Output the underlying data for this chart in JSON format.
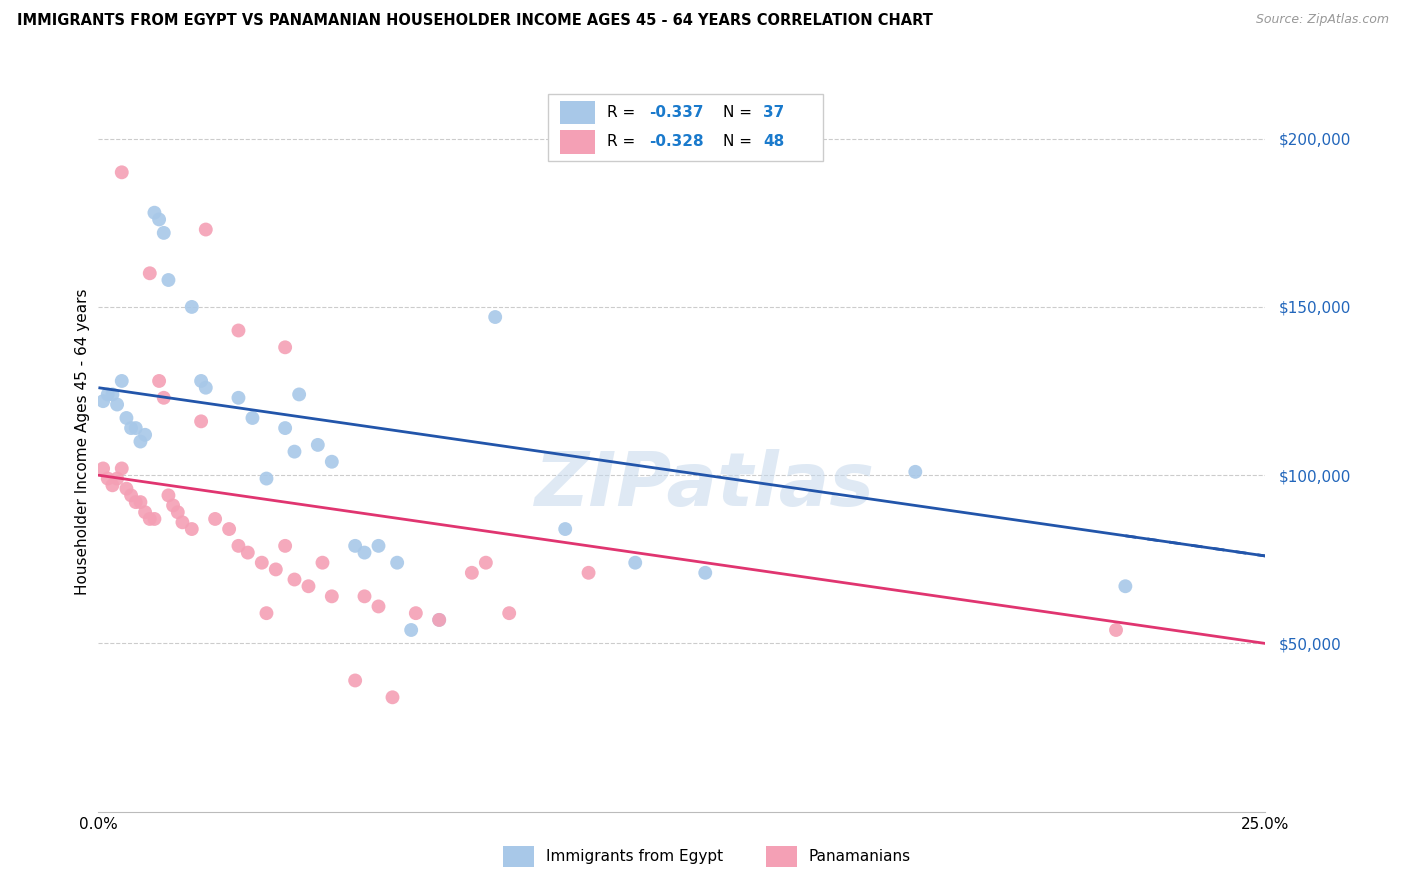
{
  "title": "IMMIGRANTS FROM EGYPT VS PANAMANIAN HOUSEHOLDER INCOME AGES 45 - 64 YEARS CORRELATION CHART",
  "source": "Source: ZipAtlas.com",
  "ylabel": "Householder Income Ages 45 - 64 years",
  "xlim": [
    0.0,
    0.25
  ],
  "ylim": [
    0,
    220000
  ],
  "yticks": [
    0,
    50000,
    100000,
    150000,
    200000
  ],
  "ytick_labels": [
    "",
    "$50,000",
    "$100,000",
    "$150,000",
    "$200,000"
  ],
  "egypt_color": "#a8c8e8",
  "panama_color": "#f4a0b5",
  "egypt_line_color": "#2255aa",
  "panama_line_color": "#e03570",
  "legend_r_color": "#1a7acc",
  "legend_n_color": "#1a7acc",
  "watermark": "ZIPatlas",
  "legend_egypt_R": "-0.337",
  "legend_egypt_N": "37",
  "legend_panama_R": "-0.328",
  "legend_panama_N": "48",
  "legend_label1": "Immigrants from Egypt",
  "legend_label2": "Panamanians",
  "egypt_points_x": [
    0.001,
    0.002,
    0.003,
    0.004,
    0.005,
    0.006,
    0.007,
    0.008,
    0.009,
    0.01,
    0.012,
    0.013,
    0.014,
    0.02,
    0.022,
    0.023,
    0.03,
    0.033,
    0.036,
    0.04,
    0.042,
    0.043,
    0.047,
    0.05,
    0.055,
    0.057,
    0.06,
    0.064,
    0.067,
    0.073,
    0.085,
    0.1,
    0.115,
    0.13,
    0.175,
    0.22,
    0.015
  ],
  "egypt_points_y": [
    122000,
    124000,
    124000,
    121000,
    128000,
    117000,
    114000,
    114000,
    110000,
    112000,
    178000,
    176000,
    172000,
    150000,
    128000,
    126000,
    123000,
    117000,
    99000,
    114000,
    107000,
    124000,
    109000,
    104000,
    79000,
    77000,
    79000,
    74000,
    54000,
    57000,
    147000,
    84000,
    74000,
    71000,
    101000,
    67000,
    158000
  ],
  "panama_points_x": [
    0.001,
    0.002,
    0.003,
    0.004,
    0.005,
    0.006,
    0.007,
    0.008,
    0.009,
    0.01,
    0.011,
    0.012,
    0.013,
    0.014,
    0.015,
    0.016,
    0.017,
    0.018,
    0.02,
    0.022,
    0.025,
    0.028,
    0.03,
    0.032,
    0.035,
    0.038,
    0.04,
    0.042,
    0.045,
    0.048,
    0.05,
    0.055,
    0.057,
    0.06,
    0.063,
    0.068,
    0.073,
    0.08,
    0.083,
    0.088,
    0.005,
    0.023,
    0.03,
    0.04,
    0.036,
    0.011,
    0.105,
    0.218
  ],
  "panama_points_y": [
    102000,
    99000,
    97000,
    99000,
    102000,
    96000,
    94000,
    92000,
    92000,
    89000,
    87000,
    87000,
    128000,
    123000,
    94000,
    91000,
    89000,
    86000,
    84000,
    116000,
    87000,
    84000,
    79000,
    77000,
    74000,
    72000,
    79000,
    69000,
    67000,
    74000,
    64000,
    39000,
    64000,
    61000,
    34000,
    59000,
    57000,
    71000,
    74000,
    59000,
    190000,
    173000,
    143000,
    138000,
    59000,
    160000,
    71000,
    54000
  ],
  "egypt_line_x0": 0.0,
  "egypt_line_y0": 126000,
  "egypt_line_x1": 0.25,
  "egypt_line_y1": 76000,
  "panama_line_x0": 0.0,
  "panama_line_y0": 100000,
  "panama_line_x1": 0.25,
  "panama_line_y1": 50000
}
